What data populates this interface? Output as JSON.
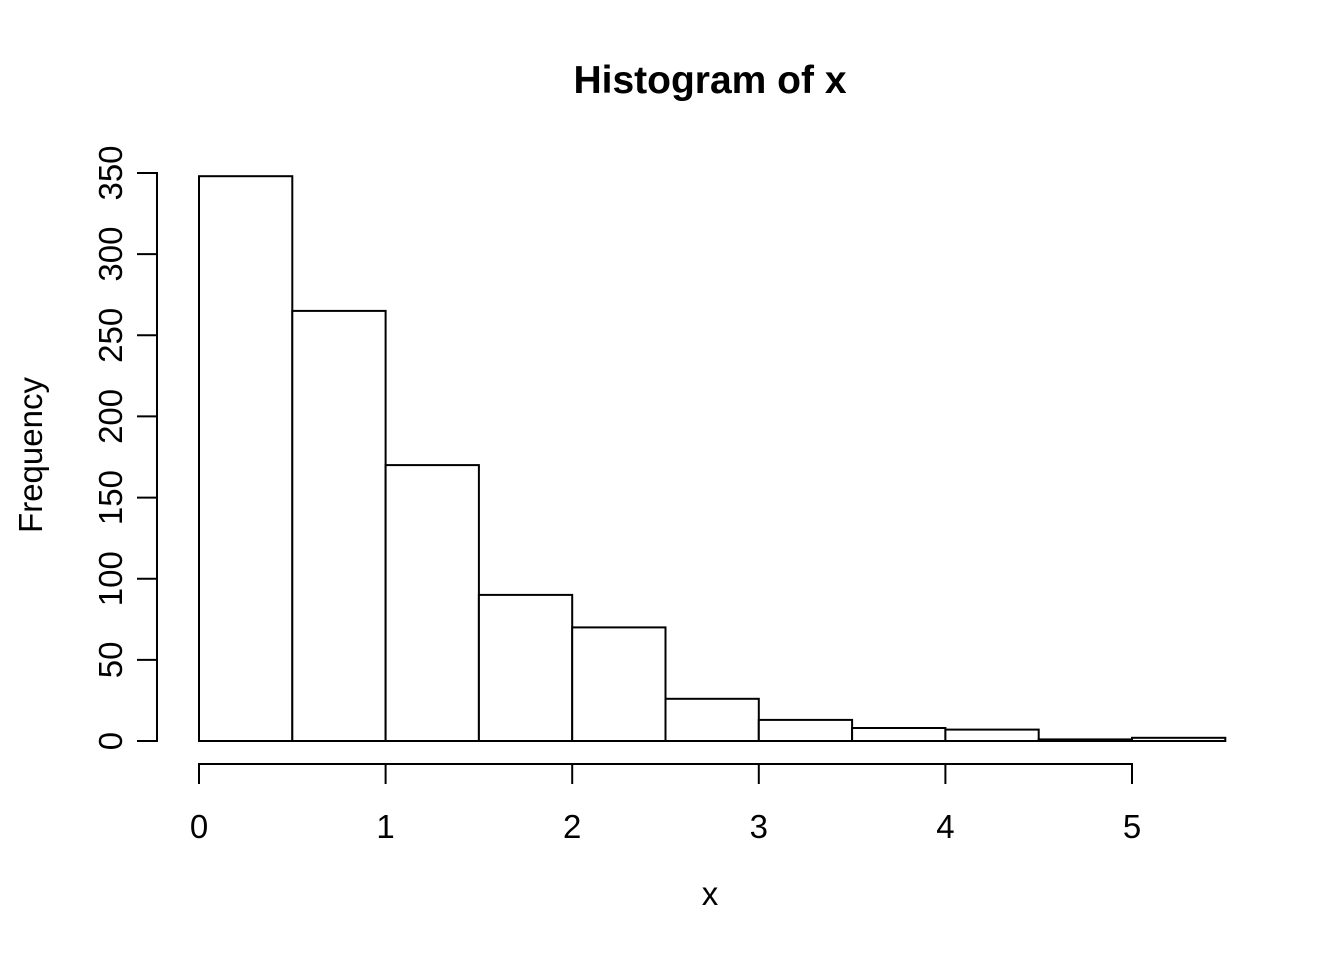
{
  "chart_data": {
    "type": "bar",
    "variant": "histogram",
    "title": "Histogram of x",
    "xlabel": "x",
    "ylabel": "Frequency",
    "bin_width": 0.5,
    "bin_start": 0,
    "bin_edges": [
      0,
      0.5,
      1,
      1.5,
      2,
      2.5,
      3,
      3.5,
      4,
      4.5,
      5,
      5.5
    ],
    "counts": [
      348,
      265,
      170,
      90,
      70,
      26,
      13,
      8,
      7,
      1,
      2
    ],
    "x_ticks": [
      0,
      1,
      2,
      3,
      4,
      5
    ],
    "y_ticks": [
      0,
      50,
      100,
      150,
      200,
      250,
      300,
      350
    ],
    "xlim": [
      0,
      5.5
    ],
    "ylim": [
      0,
      350
    ],
    "grid": "off",
    "legend": "none",
    "bar_fill": "#ffffff",
    "bar_stroke": "#000000",
    "axis_color": "#000000",
    "background": "#ffffff"
  }
}
